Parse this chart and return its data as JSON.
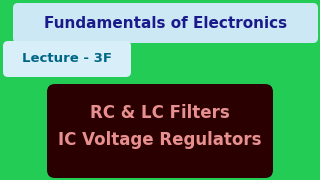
{
  "background_color": "#22cc55",
  "title_text": "Fundamentals of Electronics",
  "title_box_color": "#cce8f4",
  "title_text_color": "#1a1a8c",
  "lecture_text": "Lecture - 3F",
  "lecture_box_color": "#d8eef8",
  "lecture_text_color": "#006688",
  "body_box_color": "#2a0000",
  "body_line1": "RC & LC Filters",
  "body_line2": "IC Voltage Regulators",
  "body_text_color": "#e89090"
}
